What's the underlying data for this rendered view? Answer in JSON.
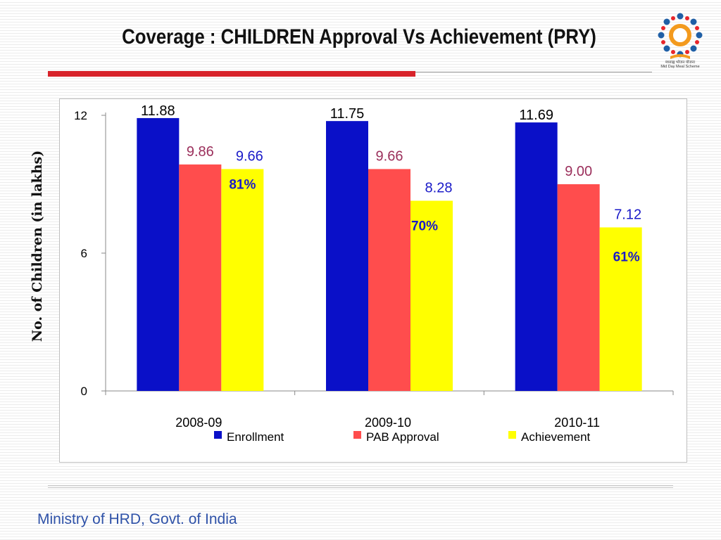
{
  "slide": {
    "title": "Coverage : CHILDREN Approval Vs Achievement (PRY)",
    "footer": "Ministry of HRD, Govt. of India",
    "logo_caption_1": "मध्याह्न भोजन योजना",
    "logo_caption_2": "Mid Day Meal Scheme"
  },
  "colors": {
    "title_rule": "#d8232a",
    "footer_text": "#2f52a8"
  },
  "chart_data": {
    "type": "bar",
    "title": "",
    "ylabel": "No. of Children (in lakhs)",
    "xlabel": "",
    "ylim": [
      0,
      12
    ],
    "yticks": [
      0,
      6,
      12
    ],
    "grid": false,
    "legend_position": "bottom",
    "categories": [
      "2008-09",
      "2009-10",
      "2010-11"
    ],
    "series": [
      {
        "name": "Enrollment",
        "color": "#0a10c8",
        "label_color": "#000000",
        "values": [
          11.88,
          11.75,
          11.69
        ],
        "labels": [
          "11.88",
          "11.75",
          "11.69"
        ]
      },
      {
        "name": "PAB Approval",
        "color": "#ff4d4d",
        "label_color": "#9b2f5b",
        "values": [
          9.86,
          9.66,
          9.0
        ],
        "labels": [
          "9.86",
          "9.66",
          "9.00"
        ]
      },
      {
        "name": "Achievement",
        "color": "#ffff00",
        "label_color": "#1a1ac8",
        "values": [
          9.66,
          8.28,
          7.12
        ],
        "labels": [
          "9.66",
          "8.28",
          "7.12"
        ]
      }
    ],
    "annotations": [
      "81%",
      "70%",
      "61%"
    ]
  }
}
